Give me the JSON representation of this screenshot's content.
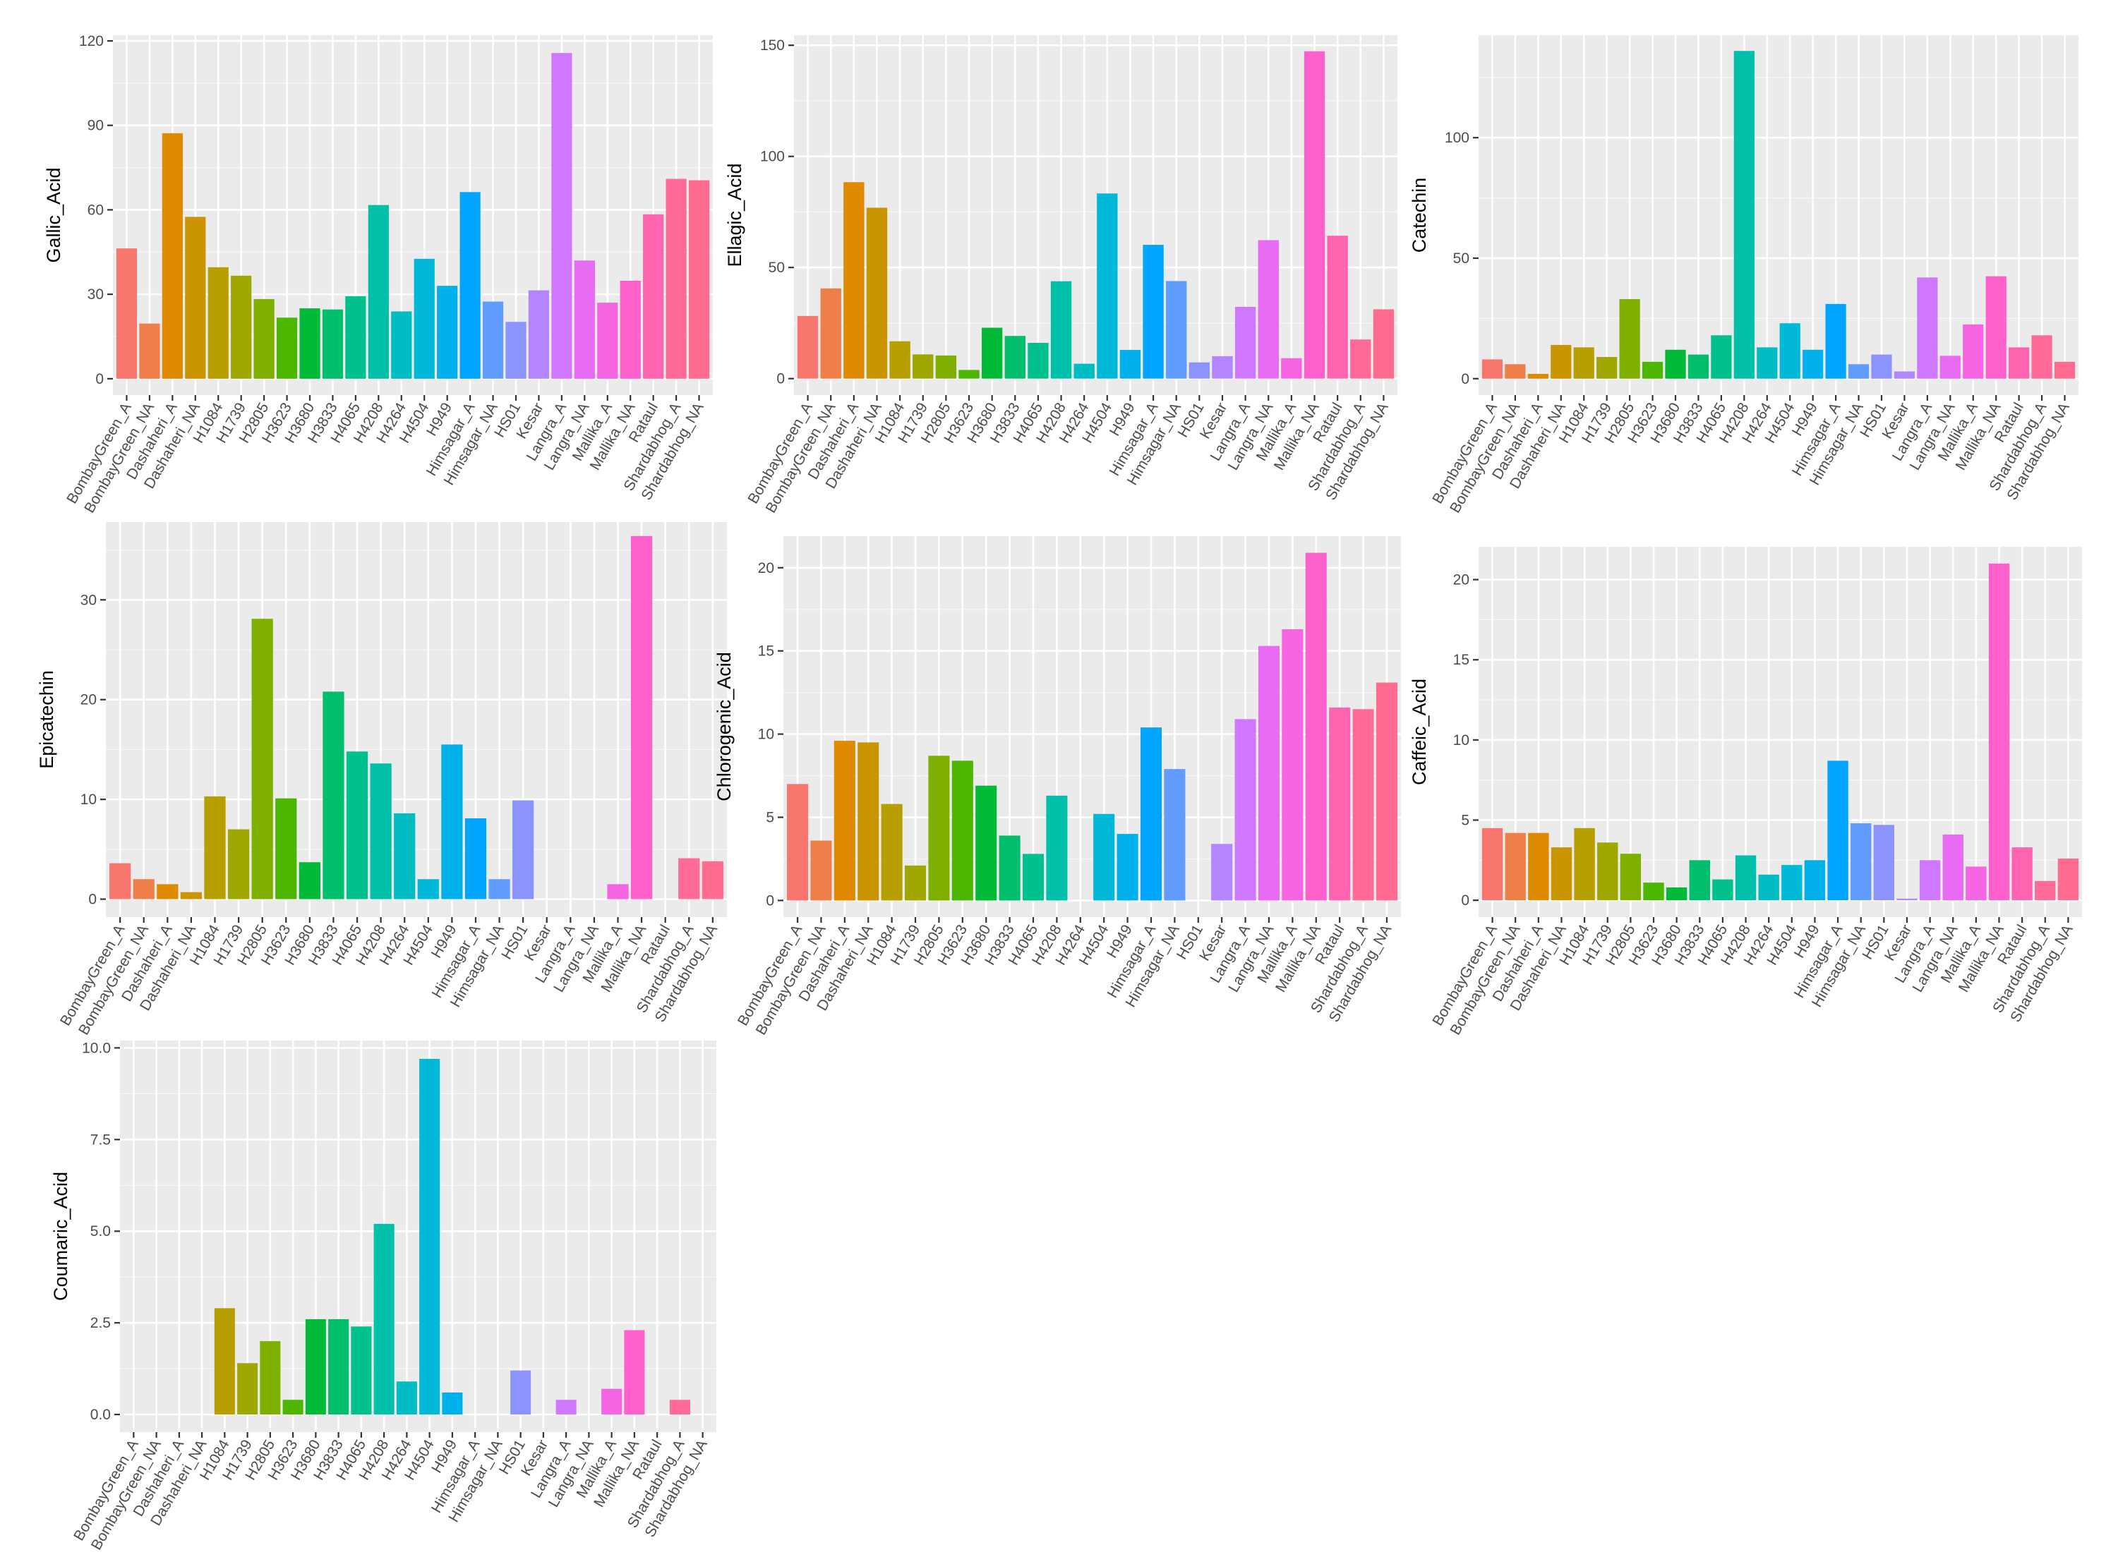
{
  "chart_data": [
    {
      "type": "bar",
      "title": "",
      "xlabel": "",
      "ylabel": "Gallic_Acid",
      "ylim": [
        -5.8,
        122
      ],
      "yticks": [
        0,
        30,
        60,
        90,
        120
      ],
      "categories": [
        "BombayGreen_A",
        "BombayGreen_NA",
        "Dashaheri_A",
        "Dashaheri_NA",
        "H1084",
        "H1739",
        "H2805",
        "H3623",
        "H3680",
        "H3833",
        "H4065",
        "H4208",
        "H4264",
        "H4504",
        "H949",
        "Himsagar_A",
        "Himsagar_NA",
        "HS01",
        "Kesar",
        "Langra_A",
        "Langra_NA",
        "Mallika_A",
        "Mallika_NA",
        "Rataul",
        "Shardabhog_A",
        "Shardabhog_NA"
      ],
      "colors": [
        "#F8766D",
        "#EF7F49",
        "#DF8A00",
        "#CB9500",
        "#B79F00",
        "#9FA800",
        "#7FB000",
        "#4DB600",
        "#00BA38",
        "#00BE6C",
        "#00C08D",
        "#00C0AA",
        "#00BDC4",
        "#00B8D8",
        "#00B0EB",
        "#00A5FF",
        "#619CFF",
        "#8B93FF",
        "#B385FF",
        "#CF78FF",
        "#E76BF3",
        "#F564E3",
        "#FF61CC",
        "#FF64B0",
        "#FF6A98",
        "#FF6C90"
      ],
      "values": [
        46.3,
        19.6,
        87.2,
        57.5,
        39.6,
        36.6,
        28.3,
        21.7,
        25.0,
        24.6,
        29.3,
        61.7,
        23.9,
        42.6,
        33.0,
        66.3,
        27.4,
        20.2,
        31.4,
        115.7,
        42.0,
        27.0,
        34.8,
        58.4,
        71.0,
        70.5
      ]
    },
    {
      "type": "bar",
      "title": "",
      "xlabel": "",
      "ylabel": "Ellagic_Acid",
      "ylim": [
        -7.4,
        154.5
      ],
      "yticks": [
        0,
        50,
        100,
        150
      ],
      "categories": [
        "BombayGreen_A",
        "BombayGreen_NA",
        "Dashaheri_A",
        "Dashaheri_NA",
        "H1084",
        "H1739",
        "H2805",
        "H3623",
        "H3680",
        "H3833",
        "H4065",
        "H4208",
        "H4264",
        "H4504",
        "H949",
        "Himsagar_A",
        "Himsagar_NA",
        "HS01",
        "Kesar",
        "Langra_A",
        "Langra_NA",
        "Mallika_A",
        "Mallika_NA",
        "Rataul",
        "Shardabhog_A",
        "Shardabhog_NA"
      ],
      "colors": [
        "#F8766D",
        "#EF7F49",
        "#DF8A00",
        "#CB9500",
        "#B79F00",
        "#9FA800",
        "#7FB000",
        "#4DB600",
        "#00BA38",
        "#00BE6C",
        "#00C08D",
        "#00C0AA",
        "#00BDC4",
        "#00B8D8",
        "#00B0EB",
        "#00A5FF",
        "#619CFF",
        "#8B93FF",
        "#B385FF",
        "#CF78FF",
        "#E76BF3",
        "#F564E3",
        "#FF61CC",
        "#FF64B0",
        "#FF6A98",
        "#FF6C90"
      ],
      "values": [
        28.2,
        40.6,
        88.4,
        76.9,
        16.8,
        10.9,
        10.4,
        3.9,
        22.9,
        19.2,
        16.1,
        43.8,
        6.7,
        83.3,
        12.9,
        60.2,
        43.9,
        7.3,
        10.1,
        32.3,
        62.3,
        9.2,
        147.3,
        64.3,
        17.6,
        31.2
      ]
    },
    {
      "type": "bar",
      "title": "",
      "xlabel": "",
      "ylabel": "Catechin",
      "ylim": [
        -6.8,
        142.5
      ],
      "yticks": [
        0,
        50,
        100
      ],
      "categories": [
        "BombayGreen_A",
        "BombayGreen_NA",
        "Dashaheri_A",
        "Dashaheri_NA",
        "H1084",
        "H1739",
        "H2805",
        "H3623",
        "H3680",
        "H3833",
        "H4065",
        "H4208",
        "H4264",
        "H4504",
        "H949",
        "Himsagar_A",
        "Himsagar_NA",
        "HS01",
        "Kesar",
        "Langra_A",
        "Langra_NA",
        "Mallika_A",
        "Mallika_NA",
        "Rataul",
        "Shardabhog_A",
        "Shardabhog_NA"
      ],
      "colors": [
        "#F8766D",
        "#EF7F49",
        "#DF8A00",
        "#CB9500",
        "#B79F00",
        "#9FA800",
        "#7FB000",
        "#4DB600",
        "#00BA38",
        "#00BE6C",
        "#00C08D",
        "#00C0AA",
        "#00BDC4",
        "#00B8D8",
        "#00B0EB",
        "#00A5FF",
        "#619CFF",
        "#8B93FF",
        "#B385FF",
        "#CF78FF",
        "#E76BF3",
        "#F564E3",
        "#FF61CC",
        "#FF64B0",
        "#FF6A98",
        "#FF6C90"
      ],
      "values": [
        8.0,
        6.0,
        2.0,
        14.0,
        13.0,
        9.0,
        33.0,
        7.0,
        12.0,
        10.0,
        18.0,
        136.0,
        13.0,
        23.0,
        12.0,
        31.0,
        6.0,
        10.0,
        3.0,
        42.0,
        9.5,
        22.5,
        42.5,
        13.0,
        18.0,
        7.0
      ]
    },
    {
      "type": "bar",
      "title": "",
      "xlabel": "",
      "ylabel": "Epicatechin",
      "ylim": [
        -1.8,
        37.8
      ],
      "yticks": [
        0,
        10,
        20,
        30
      ],
      "categories": [
        "BombayGreen_A",
        "BombayGreen_NA",
        "Dashaheri_A",
        "Dashaheri_NA",
        "H1084",
        "H1739",
        "H2805",
        "H3623",
        "H3680",
        "H3833",
        "H4065",
        "H4208",
        "H4264",
        "H4504",
        "H949",
        "Himsagar_A",
        "Himsagar_NA",
        "HS01",
        "Kesar",
        "Langra_A",
        "Langra_NA",
        "Mallika_A",
        "Mallika_NA",
        "Rataul",
        "Shardabhog_A",
        "Shardabhog_NA"
      ],
      "colors": [
        "#F8766D",
        "#EF7F49",
        "#DF8A00",
        "#CB9500",
        "#B79F00",
        "#9FA800",
        "#7FB000",
        "#4DB600",
        "#00BA38",
        "#00BE6C",
        "#00C08D",
        "#00C0AA",
        "#00BDC4",
        "#00B8D8",
        "#00B0EB",
        "#00A5FF",
        "#619CFF",
        "#8B93FF",
        "#B385FF",
        "#CF78FF",
        "#E76BF3",
        "#F564E3",
        "#FF61CC",
        "#FF64B0",
        "#FF6A98",
        "#FF6C90"
      ],
      "values": [
        3.6,
        2.0,
        1.5,
        0.7,
        10.3,
        7.0,
        28.1,
        10.1,
        3.7,
        20.8,
        14.8,
        13.6,
        8.6,
        2.0,
        15.5,
        8.1,
        2.0,
        9.9,
        0,
        0,
        0,
        1.5,
        36.4,
        0,
        4.1,
        3.8
      ]
    },
    {
      "type": "bar",
      "title": "",
      "xlabel": "",
      "ylabel": "Chlorogenic_Acid",
      "ylim": [
        -1.0,
        21.9
      ],
      "yticks": [
        0,
        5,
        10,
        15,
        20
      ],
      "categories": [
        "BombayGreen_A",
        "BombayGreen_NA",
        "Dashaheri_A",
        "Dashaheri_NA",
        "H1084",
        "H1739",
        "H2805",
        "H3623",
        "H3680",
        "H3833",
        "H4065",
        "H4208",
        "H4264",
        "H4504",
        "H949",
        "Himsagar_A",
        "Himsagar_NA",
        "HS01",
        "Kesar",
        "Langra_A",
        "Langra_NA",
        "Mallika_A",
        "Mallika_NA",
        "Rataul",
        "Shardabhog_A",
        "Shardabhog_NA"
      ],
      "colors": [
        "#F8766D",
        "#EF7F49",
        "#DF8A00",
        "#CB9500",
        "#B79F00",
        "#9FA800",
        "#7FB000",
        "#4DB600",
        "#00BA38",
        "#00BE6C",
        "#00C08D",
        "#00C0AA",
        "#00BDC4",
        "#00B8D8",
        "#00B0EB",
        "#00A5FF",
        "#619CFF",
        "#8B93FF",
        "#B385FF",
        "#CF78FF",
        "#E76BF3",
        "#F564E3",
        "#FF61CC",
        "#FF64B0",
        "#FF6A98",
        "#FF6C90"
      ],
      "values": [
        7.0,
        3.6,
        9.6,
        9.5,
        5.8,
        2.1,
        8.7,
        8.4,
        6.9,
        3.9,
        2.8,
        6.3,
        0,
        5.2,
        4.0,
        10.4,
        7.9,
        0,
        3.4,
        10.9,
        15.3,
        16.3,
        20.9,
        11.6,
        11.5,
        13.1
      ]
    },
    {
      "type": "bar",
      "title": "",
      "xlabel": "",
      "ylabel": "Caffeic_Acid",
      "ylim": [
        -1.05,
        22.05
      ],
      "yticks": [
        0,
        5,
        10,
        15,
        20
      ],
      "categories": [
        "BombayGreen_A",
        "BombayGreen_NA",
        "Dashaheri_A",
        "Dashaheri_NA",
        "H1084",
        "H1739",
        "H2805",
        "H3623",
        "H3680",
        "H3833",
        "H4065",
        "H4208",
        "H4264",
        "H4504",
        "H949",
        "Himsagar_A",
        "Himsagar_NA",
        "HS01",
        "Kesar",
        "Langra_A",
        "Langra_NA",
        "Mallika_A",
        "Mallika_NA",
        "Rataul",
        "Shardabhog_A",
        "Shardabhog_NA"
      ],
      "colors": [
        "#F8766D",
        "#EF7F49",
        "#DF8A00",
        "#CB9500",
        "#B79F00",
        "#9FA800",
        "#7FB000",
        "#4DB600",
        "#00BA38",
        "#00BE6C",
        "#00C08D",
        "#00C0AA",
        "#00BDC4",
        "#00B8D8",
        "#00B0EB",
        "#00A5FF",
        "#619CFF",
        "#8B93FF",
        "#B385FF",
        "#CF78FF",
        "#E76BF3",
        "#F564E3",
        "#FF61CC",
        "#FF64B0",
        "#FF6A98",
        "#FF6C90"
      ],
      "values": [
        4.5,
        4.2,
        4.2,
        3.3,
        4.5,
        3.6,
        2.9,
        1.1,
        0.8,
        2.5,
        1.3,
        2.8,
        1.6,
        2.2,
        2.5,
        8.7,
        4.8,
        4.7,
        0.1,
        2.5,
        4.1,
        2.1,
        21.0,
        3.3,
        1.2,
        2.6
      ]
    },
    {
      "type": "bar",
      "title": "",
      "xlabel": "",
      "ylabel": "Coumaric_Acid",
      "ylim": [
        -0.48,
        10.2
      ],
      "yticks": [
        0,
        2.5,
        5,
        7.5,
        10
      ],
      "ytick_labels": [
        "0.0",
        "2.5",
        "5.0",
        "7.5",
        "10.0"
      ],
      "categories": [
        "BombayGreen_A",
        "BombayGreen_NA",
        "Dashaheri_A",
        "Dashaheri_NA",
        "H1084",
        "H1739",
        "H2805",
        "H3623",
        "H3680",
        "H3833",
        "H4065",
        "H4208",
        "H4264",
        "H4504",
        "H949",
        "Himsagar_A",
        "Himsagar_NA",
        "HS01",
        "Kesar",
        "Langra_A",
        "Langra_NA",
        "Mallika_A",
        "Mallika_NA",
        "Rataul",
        "Shardabhog_A",
        "Shardabhog_NA"
      ],
      "colors": [
        "#F8766D",
        "#EF7F49",
        "#DF8A00",
        "#CB9500",
        "#B79F00",
        "#9FA800",
        "#7FB000",
        "#4DB600",
        "#00BA38",
        "#00BE6C",
        "#00C08D",
        "#00C0AA",
        "#00BDC4",
        "#00B8D8",
        "#00B0EB",
        "#00A5FF",
        "#619CFF",
        "#8B93FF",
        "#B385FF",
        "#CF78FF",
        "#E76BF3",
        "#F564E3",
        "#FF61CC",
        "#FF64B0",
        "#FF6A98",
        "#FF6C90"
      ],
      "values": [
        0,
        0,
        0,
        0,
        2.9,
        1.4,
        2.0,
        0.4,
        2.6,
        2.6,
        2.4,
        5.2,
        0.9,
        9.7,
        0.6,
        0,
        0,
        1.2,
        0,
        0.4,
        0,
        0.7,
        2.3,
        0,
        0.4,
        0
      ]
    }
  ]
}
